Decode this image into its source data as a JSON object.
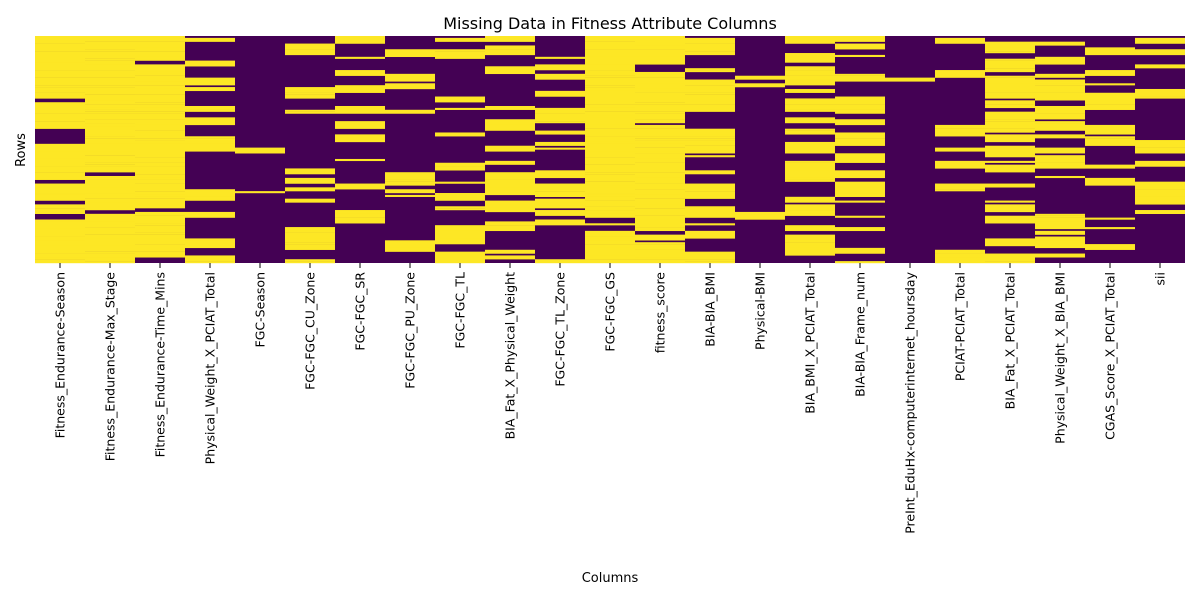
{
  "chart_data": {
    "type": "heatmap",
    "title": "Missing Data in Fitness Attribute Columns",
    "xlabel": "Columns",
    "ylabel": "Rows",
    "colorbar": false,
    "y_ticks_shown": false,
    "value_encoding": {
      "missing": 1,
      "present": 0
    },
    "colors": {
      "missing": "#fde725",
      "present": "#440154"
    },
    "row_count_estimate": 120,
    "columns": [
      {
        "name": "Fitness_Endurance-Season",
        "missing_fraction": 0.82
      },
      {
        "name": "Fitness_Endurance-Max_Stage",
        "missing_fraction": 0.96
      },
      {
        "name": "Fitness_Endurance-Time_Mins",
        "missing_fraction": 0.96
      },
      {
        "name": "Physical_Weight_X_PCIAT_Total",
        "missing_fraction": 0.35
      },
      {
        "name": "FGC-Season",
        "missing_fraction": 0.05
      },
      {
        "name": "FGC-FGC_CU_Zone",
        "missing_fraction": 0.35
      },
      {
        "name": "FGC-FGC_SR",
        "missing_fraction": 0.35
      },
      {
        "name": "FGC-FGC_PU_Zone",
        "missing_fraction": 0.35
      },
      {
        "name": "FGC-FGC_TL",
        "missing_fraction": 0.35
      },
      {
        "name": "BIA_Fat_X_Physical_Weight",
        "missing_fraction": 0.5
      },
      {
        "name": "FGC-FGC_TL_Zone",
        "missing_fraction": 0.35
      },
      {
        "name": "FGC-FGC_GS",
        "missing_fraction": 0.9
      },
      {
        "name": "fitness_score",
        "missing_fraction": 0.9
      },
      {
        "name": "BIA-BIA_BMI",
        "missing_fraction": 0.5
      },
      {
        "name": "Physical-BMI",
        "missing_fraction": 0.15
      },
      {
        "name": "BIA_BMI_X_PCIAT_Total",
        "missing_fraction": 0.6
      },
      {
        "name": "BIA-BIA_Frame_num",
        "missing_fraction": 0.5
      },
      {
        "name": "PreInt_EduHx-computerinternet_hoursday",
        "missing_fraction": 0.05
      },
      {
        "name": "PCIAT-PCIAT_Total",
        "missing_fraction": 0.3
      },
      {
        "name": "BIA_Fat_X_PCIAT_Total",
        "missing_fraction": 0.6
      },
      {
        "name": "Physical_Weight_X_BIA_BMI",
        "missing_fraction": 0.5
      },
      {
        "name": "CGAS_Score_X_PCIAT_Total",
        "missing_fraction": 0.3
      },
      {
        "name": "sii",
        "missing_fraction": 0.3
      }
    ]
  }
}
